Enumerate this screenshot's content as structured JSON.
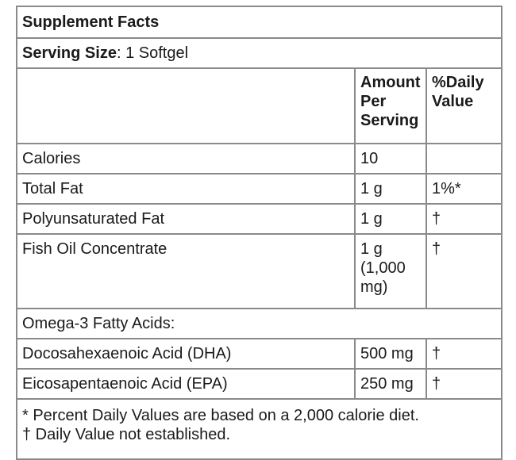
{
  "title": "Supplement Facts",
  "serving": {
    "label": "Serving Size",
    "separator": ": ",
    "value": "1 Softgel"
  },
  "columns": {
    "amount": "Amount Per Serving",
    "daily_value": "%Daily Value"
  },
  "rows": [
    {
      "name": "Calories",
      "amount": "10",
      "dv": ""
    },
    {
      "name": "Total Fat",
      "amount": "1 g",
      "dv": "1%*"
    },
    {
      "name": "Polyunsaturated Fat",
      "amount": "1 g",
      "dv": "†"
    },
    {
      "name": "Fish Oil Concentrate",
      "amount": "1 g (1,000 mg)",
      "dv": "†"
    },
    {
      "name": "Omega-3 Fatty Acids:"
    },
    {
      "name": "Docosahexaenoic Acid (DHA)",
      "amount": "500 mg",
      "dv": "†"
    },
    {
      "name": "Eicosapentaenoic Acid (EPA)",
      "amount": "250 mg",
      "dv": "†"
    }
  ],
  "footnotes": [
    "* Percent Daily Values are based on a 2,000 calorie diet.",
    "† Daily Value not established."
  ]
}
